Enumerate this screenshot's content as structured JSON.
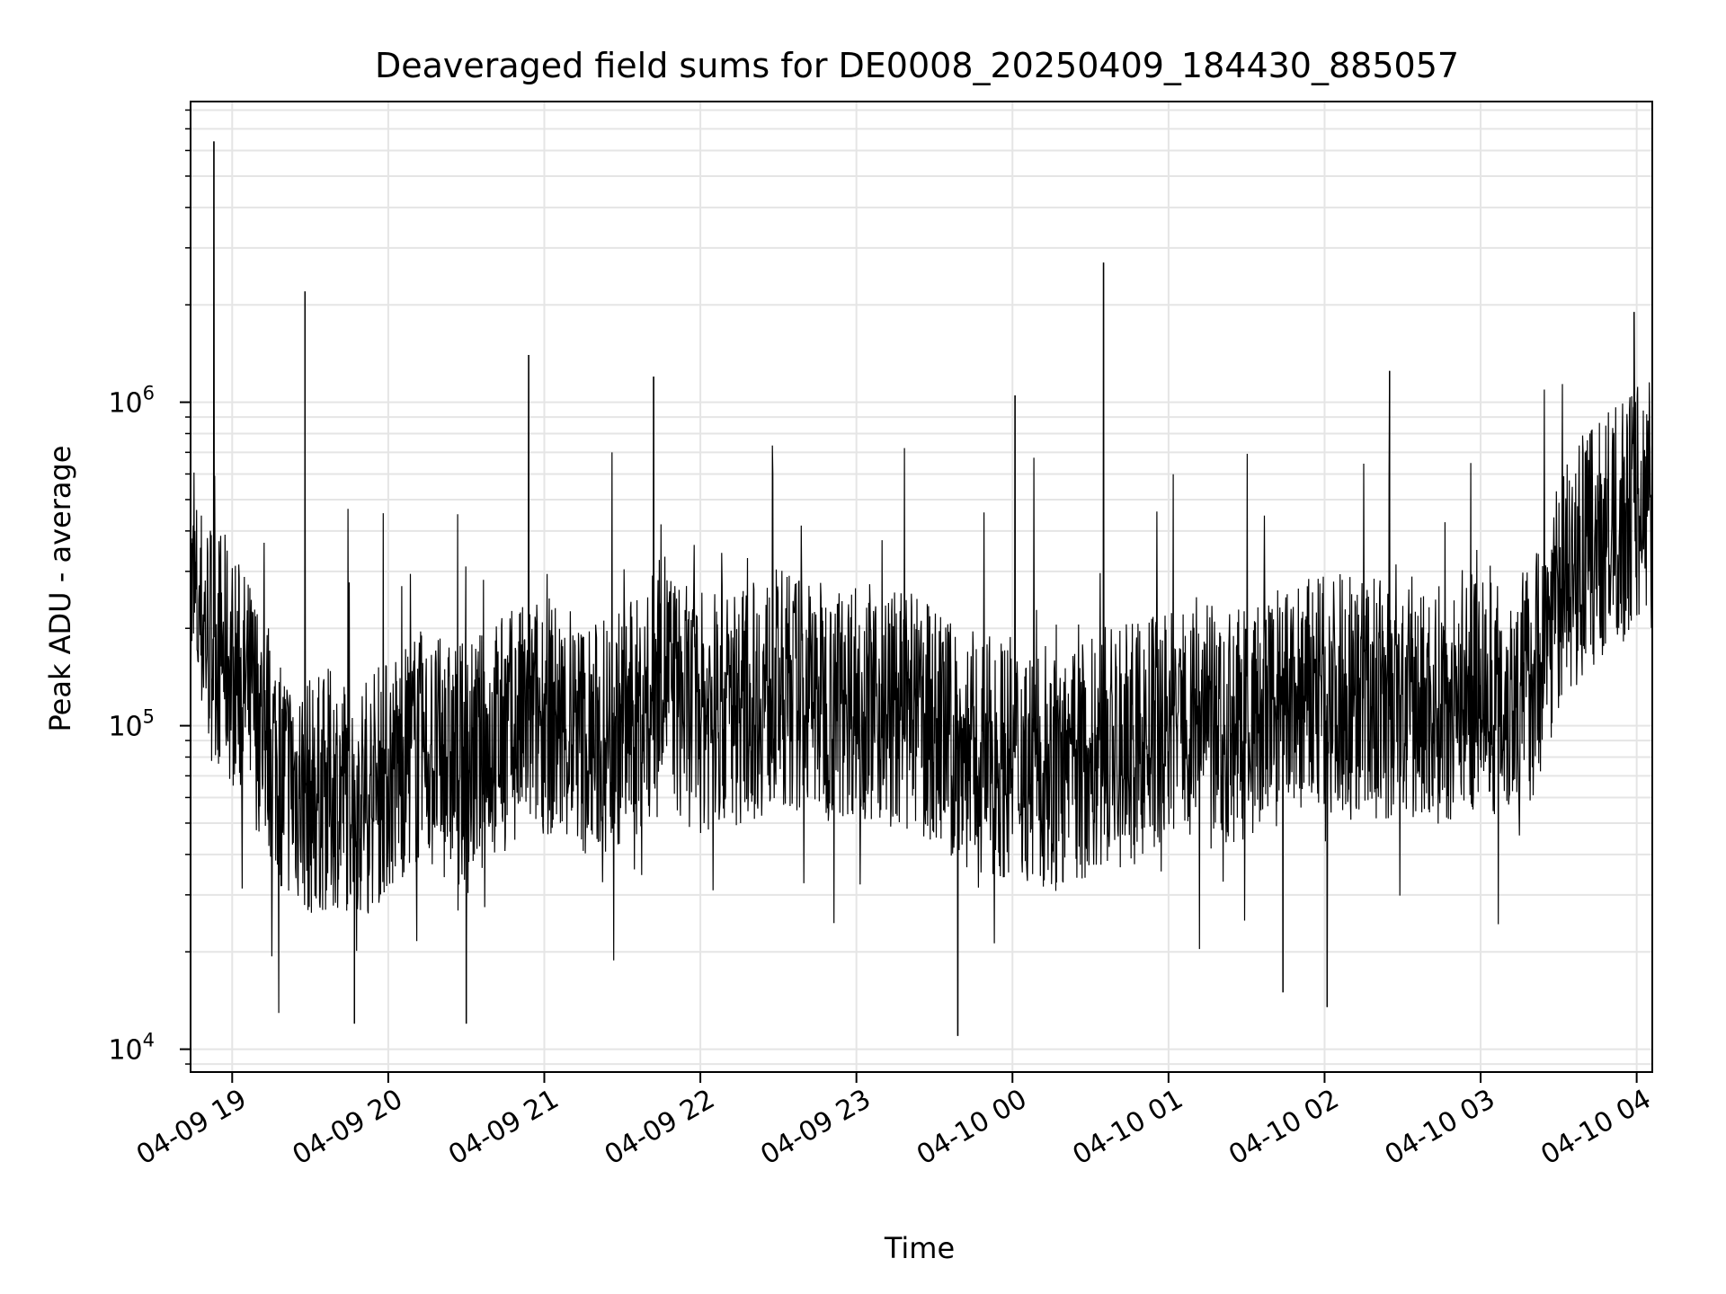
{
  "chart_data": {
    "type": "line",
    "title": "Deaveraged field sums for DE0008_20250409_184430_885057",
    "xlabel": "Time",
    "ylabel": "Peak ADU - average",
    "yscale": "log",
    "ylim": [
      8500,
      8500000
    ],
    "xlim": [
      "2025-04-09 18:44",
      "2025-04-10 04:06"
    ],
    "grid": true,
    "x_tick_labels": [
      "04-09 19",
      "04-09 20",
      "04-09 21",
      "04-09 22",
      "04-09 23",
      "04-10 00",
      "04-10 01",
      "04-10 02",
      "04-10 03",
      "04-10 04"
    ],
    "y_tick_labels": [
      {
        "base": "10",
        "exp": "4",
        "value": 10000
      },
      {
        "base": "10",
        "exp": "5",
        "value": 100000
      },
      {
        "base": "10",
        "exp": "6",
        "value": 1000000
      }
    ],
    "line_color": "#000000",
    "series": [
      {
        "x": [
          "2025-04-09 18:44",
          "2025-04-09 18:50",
          "2025-04-09 18:55",
          "2025-04-09 19:00",
          "2025-04-09 19:10",
          "2025-04-09 19:20",
          "2025-04-09 19:30",
          "2025-04-09 19:40",
          "2025-04-09 19:50",
          "2025-04-09 20:00",
          "2025-04-09 20:10",
          "2025-04-09 20:20",
          "2025-04-09 20:30",
          "2025-04-09 20:40",
          "2025-04-09 20:50",
          "2025-04-09 21:00",
          "2025-04-09 21:10",
          "2025-04-09 21:20",
          "2025-04-09 21:30",
          "2025-04-09 21:40",
          "2025-04-09 21:45",
          "2025-04-09 21:50",
          "2025-04-09 22:00",
          "2025-04-09 22:10",
          "2025-04-09 22:20",
          "2025-04-09 22:30",
          "2025-04-09 22:40",
          "2025-04-09 22:50",
          "2025-04-09 23:00",
          "2025-04-09 23:10",
          "2025-04-09 23:20",
          "2025-04-09 23:30",
          "2025-04-09 23:40",
          "2025-04-09 23:50",
          "2025-04-10 00:00",
          "2025-04-10 00:10",
          "2025-04-10 00:20",
          "2025-04-10 00:30",
          "2025-04-10 00:40",
          "2025-04-10 00:50",
          "2025-04-10 01:00",
          "2025-04-10 01:10",
          "2025-04-10 01:20",
          "2025-04-10 01:30",
          "2025-04-10 01:40",
          "2025-04-10 01:50",
          "2025-04-10 02:00",
          "2025-04-10 02:10",
          "2025-04-10 02:20",
          "2025-04-10 02:30",
          "2025-04-10 02:40",
          "2025-04-10 02:50",
          "2025-04-10 03:00",
          "2025-04-10 03:10",
          "2025-04-10 03:20",
          "2025-04-10 03:30",
          "2025-04-10 03:40",
          "2025-04-10 03:50",
          "2025-04-10 04:00",
          "2025-04-10 04:06"
        ],
        "y": [
          250000,
          200000,
          180000,
          150000,
          110000,
          70000,
          60000,
          65000,
          60000,
          70000,
          85000,
          80000,
          75000,
          90000,
          100000,
          110000,
          95000,
          90000,
          100000,
          110000,
          180000,
          120000,
          110000,
          115000,
          120000,
          130000,
          125000,
          120000,
          125000,
          115000,
          110000,
          100000,
          85000,
          80000,
          80000,
          75000,
          70000,
          80000,
          85000,
          90000,
          100000,
          110000,
          95000,
          100000,
          110000,
          120000,
          125000,
          130000,
          120000,
          110000,
          115000,
          120000,
          130000,
          120000,
          140000,
          260000,
          330000,
          400000,
          500000,
          450000
        ]
      }
    ],
    "spikes": [
      {
        "x": "2025-04-09 18:53",
        "y": 6400000
      },
      {
        "x": "2025-04-09 19:28",
        "y": 2200000
      },
      {
        "x": "2025-04-09 20:54",
        "y": 1400000
      },
      {
        "x": "2025-04-09 21:42",
        "y": 1200000
      },
      {
        "x": "2025-04-10 00:01",
        "y": 1050000
      },
      {
        "x": "2025-04-10 00:35",
        "y": 2700000
      },
      {
        "x": "2025-04-10 02:25",
        "y": 1250000
      },
      {
        "x": "2025-04-10 03:59",
        "y": 1900000
      }
    ],
    "dips": [
      {
        "x": "2025-04-09 19:47",
        "y": 12000
      },
      {
        "x": "2025-04-09 20:30",
        "y": 12000
      },
      {
        "x": "2025-04-09 23:39",
        "y": 11000
      },
      {
        "x": "2025-04-10 01:44",
        "y": 15000
      },
      {
        "x": "2025-04-10 02:01",
        "y": 13500
      }
    ]
  }
}
